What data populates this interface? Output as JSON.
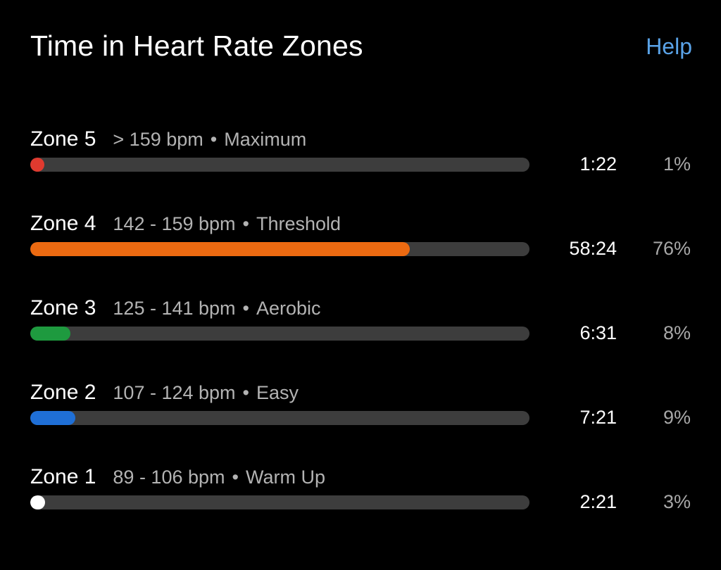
{
  "header": {
    "title": "Time in Heart Rate Zones",
    "help_label": "Help",
    "help_color": "#5aa3e8"
  },
  "zones": [
    {
      "name": "Zone 5",
      "range": "> 159 bpm",
      "separator": "•",
      "type": "Maximum",
      "time": "1:22",
      "percent": "1%",
      "fraction": 0.01,
      "color": "#e03a2f"
    },
    {
      "name": "Zone 4",
      "range": "142 - 159 bpm",
      "separator": "•",
      "type": "Threshold",
      "time": "58:24",
      "percent": "76%",
      "fraction": 0.76,
      "color": "#ec6a11"
    },
    {
      "name": "Zone 3",
      "range": "125 - 141 bpm",
      "separator": "•",
      "type": "Aerobic",
      "time": "6:31",
      "percent": "8%",
      "fraction": 0.08,
      "color": "#1e9a3f"
    },
    {
      "name": "Zone 2",
      "range": "107 - 124 bpm",
      "separator": "•",
      "type": "Easy",
      "time": "7:21",
      "percent": "9%",
      "fraction": 0.09,
      "color": "#1f6fd6"
    },
    {
      "name": "Zone 1",
      "range": "89 - 106 bpm",
      "separator": "•",
      "type": "Warm Up",
      "time": "2:21",
      "percent": "3%",
      "fraction": 0.03,
      "color": "#ffffff"
    }
  ]
}
